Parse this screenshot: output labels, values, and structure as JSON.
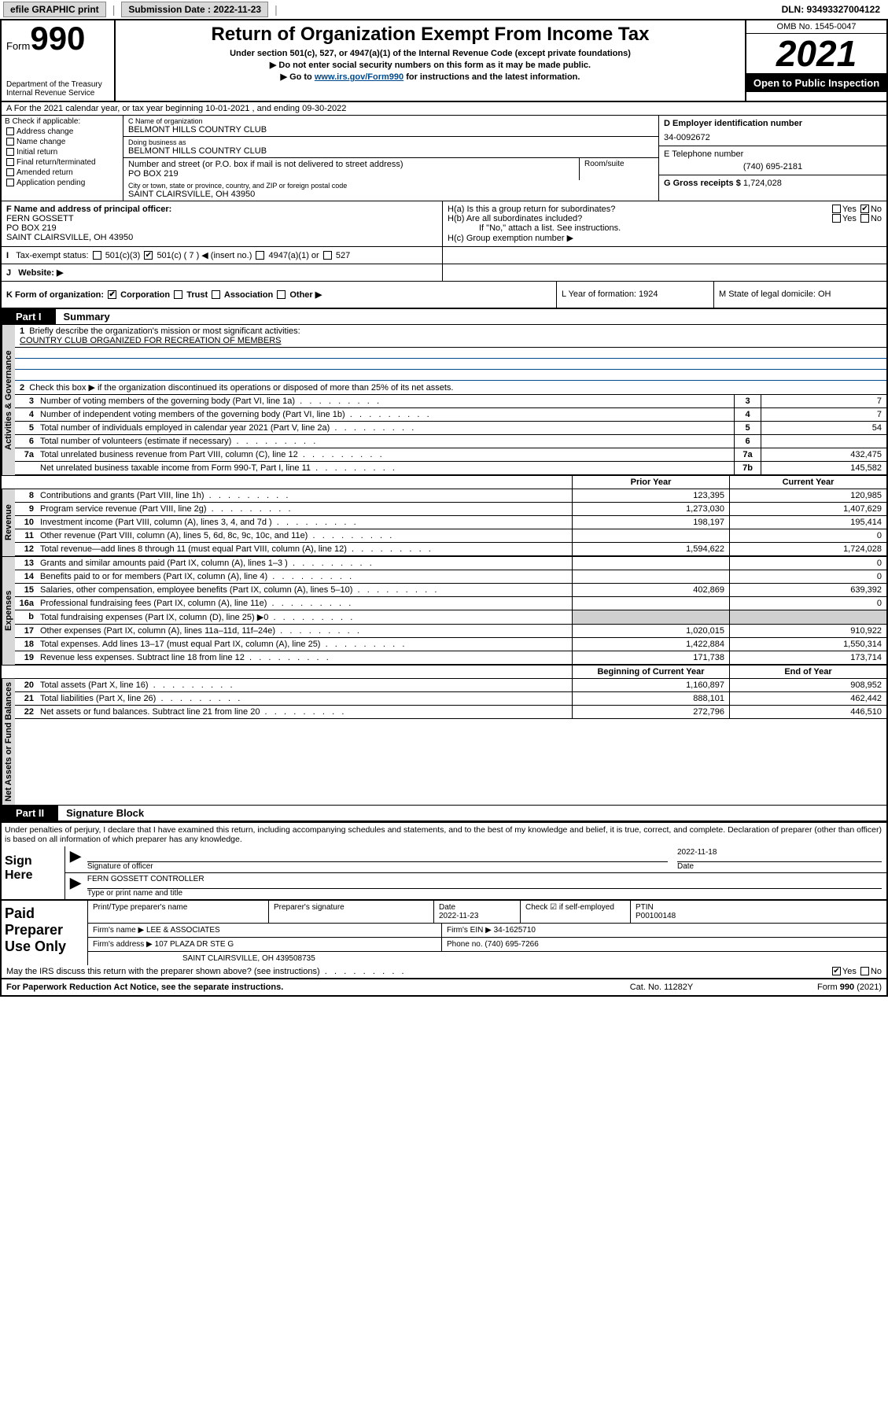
{
  "topbar": {
    "efile": "efile GRAPHIC print",
    "sub_label": "Submission Date : 2022-11-23",
    "dln": "DLN: 93493327004122"
  },
  "header": {
    "form_word": "Form",
    "form_num": "990",
    "dept": "Department of the Treasury\nInternal Revenue Service",
    "title": "Return of Organization Exempt From Income Tax",
    "sub1": "Under section 501(c), 527, or 4947(a)(1) of the Internal Revenue Code (except private foundations)",
    "sub2": "▶ Do not enter social security numbers on this form as it may be made public.",
    "sub3": "▶ Go to www.irs.gov/Form990 for instructions and the latest information.",
    "omb": "OMB No. 1545-0047",
    "year": "2021",
    "open": "Open to Public Inspection"
  },
  "rowA": "A For the 2021 calendar year, or tax year beginning 10-01-2021  , and ending 09-30-2022",
  "checkB": {
    "title": "B Check if applicable:",
    "items": [
      "Address change",
      "Name change",
      "Initial return",
      "Final return/terminated",
      "Amended return",
      "Application pending"
    ]
  },
  "orgC": {
    "lbl": "C Name of organization",
    "name": "BELMONT HILLS COUNTRY CLUB",
    "dba_lbl": "Doing business as",
    "dba": "BELMONT HILLS COUNTRY CLUB",
    "addr_lbl": "Number and street (or P.O. box if mail is not delivered to street address)",
    "addr": "PO BOX 219",
    "room_lbl": "Room/suite",
    "city_lbl": "City or town, state or province, country, and ZIP or foreign postal code",
    "city": "SAINT CLAIRSVILLE, OH  43950"
  },
  "ein": {
    "lbl": "D Employer identification number",
    "val": "34-0092672"
  },
  "tel": {
    "lbl": "E Telephone number",
    "val": "(740) 695-2181"
  },
  "gross": {
    "lbl": "G Gross receipts $",
    "val": "1,724,028"
  },
  "officerF": {
    "lbl": "F Name and address of principal officer:",
    "name": "FERN GOSSETT",
    "addr1": "PO BOX 219",
    "addr2": "SAINT CLAIRSVILLE, OH  43950"
  },
  "hBox": {
    "a": "H(a)  Is this a group return for subordinates?",
    "b": "H(b)  Are all subordinates included?",
    "note": "If \"No,\" attach a list. See instructions.",
    "c": "H(c)  Group exemption number ▶"
  },
  "rowI": "Tax-exempt status:",
  "rowI_opts": [
    "501(c)(3)",
    "501(c) ( 7 ) ◀ (insert no.)",
    "4947(a)(1) or",
    "527"
  ],
  "rowJ": "Website: ▶",
  "rowK": {
    "org": "K Form of organization:",
    "opts": [
      "Corporation",
      "Trust",
      "Association",
      "Other ▶"
    ],
    "year": "L Year of formation: 1924",
    "dom": "M State of legal domicile: OH"
  },
  "parts": {
    "p1": "Part I",
    "p1_lbl": "Summary",
    "p2": "Part II",
    "p2_lbl": "Signature Block"
  },
  "sideLabels": {
    "gov": "Activities & Governance",
    "rev": "Revenue",
    "exp": "Expenses",
    "net": "Net Assets or Fund Balances"
  },
  "summary": {
    "q1": "Briefly describe the organization's mission or most significant activities:",
    "q1v": "COUNTRY CLUB ORGANIZED FOR RECREATION OF MEMBERS",
    "q2": "Check this box ▶        if the organization discontinued its operations or disposed of more than 25% of its net assets.",
    "lines": [
      {
        "n": "3",
        "t": "Number of voting members of the governing body (Part VI, line 1a)",
        "b": "3",
        "v": "7"
      },
      {
        "n": "4",
        "t": "Number of independent voting members of the governing body (Part VI, line 1b)",
        "b": "4",
        "v": "7"
      },
      {
        "n": "5",
        "t": "Total number of individuals employed in calendar year 2021 (Part V, line 2a)",
        "b": "5",
        "v": "54"
      },
      {
        "n": "6",
        "t": "Total number of volunteers (estimate if necessary)",
        "b": "6",
        "v": ""
      },
      {
        "n": "7a",
        "t": "Total unrelated business revenue from Part VIII, column (C), line 12",
        "b": "7a",
        "v": "432,475"
      },
      {
        "n": "",
        "t": "Net unrelated business taxable income from Form 990-T, Part I, line 11",
        "b": "7b",
        "v": "145,582"
      }
    ]
  },
  "colHdr": {
    "prior": "Prior Year",
    "curr": "Current Year",
    "beg": "Beginning of Current Year",
    "end": "End of Year"
  },
  "revenue": [
    {
      "n": "8",
      "t": "Contributions and grants (Part VIII, line 1h)",
      "p": "123,395",
      "c": "120,985"
    },
    {
      "n": "9",
      "t": "Program service revenue (Part VIII, line 2g)",
      "p": "1,273,030",
      "c": "1,407,629"
    },
    {
      "n": "10",
      "t": "Investment income (Part VIII, column (A), lines 3, 4, and 7d )",
      "p": "198,197",
      "c": "195,414"
    },
    {
      "n": "11",
      "t": "Other revenue (Part VIII, column (A), lines 5, 6d, 8c, 9c, 10c, and 11e)",
      "p": "",
      "c": "0"
    },
    {
      "n": "12",
      "t": "Total revenue—add lines 8 through 11 (must equal Part VIII, column (A), line 12)",
      "p": "1,594,622",
      "c": "1,724,028"
    }
  ],
  "expenses": [
    {
      "n": "13",
      "t": "Grants and similar amounts paid (Part IX, column (A), lines 1–3 )",
      "p": "",
      "c": "0"
    },
    {
      "n": "14",
      "t": "Benefits paid to or for members (Part IX, column (A), line 4)",
      "p": "",
      "c": "0"
    },
    {
      "n": "15",
      "t": "Salaries, other compensation, employee benefits (Part IX, column (A), lines 5–10)",
      "p": "402,869",
      "c": "639,392"
    },
    {
      "n": "16a",
      "t": "Professional fundraising fees (Part IX, column (A), line 11e)",
      "p": "",
      "c": "0"
    },
    {
      "n": "b",
      "t": "Total fundraising expenses (Part IX, column (D), line 25) ▶0",
      "p": "GRAY",
      "c": "GRAY"
    },
    {
      "n": "17",
      "t": "Other expenses (Part IX, column (A), lines 11a–11d, 11f–24e)",
      "p": "1,020,015",
      "c": "910,922"
    },
    {
      "n": "18",
      "t": "Total expenses. Add lines 13–17 (must equal Part IX, column (A), line 25)",
      "p": "1,422,884",
      "c": "1,550,314"
    },
    {
      "n": "19",
      "t": "Revenue less expenses. Subtract line 18 from line 12",
      "p": "171,738",
      "c": "173,714"
    }
  ],
  "netassets": [
    {
      "n": "20",
      "t": "Total assets (Part X, line 16)",
      "p": "1,160,897",
      "c": "908,952"
    },
    {
      "n": "21",
      "t": "Total liabilities (Part X, line 26)",
      "p": "888,101",
      "c": "462,442"
    },
    {
      "n": "22",
      "t": "Net assets or fund balances. Subtract line 21 from line 20",
      "p": "272,796",
      "c": "446,510"
    }
  ],
  "sigText": "Under penalties of perjury, I declare that I have examined this return, including accompanying schedules and statements, and to the best of my knowledge and belief, it is true, correct, and complete. Declaration of preparer (other than officer) is based on all information of which preparer has any knowledge.",
  "sign": {
    "lab": "Sign Here",
    "sigof": "Signature of officer",
    "date": "2022-11-18",
    "datel": "Date",
    "name": "FERN GOSSETT CONTROLLER",
    "namel": "Type or print name and title"
  },
  "prep": {
    "lab": "Paid Preparer Use Only",
    "hdrs": [
      "Print/Type preparer's name",
      "Preparer's signature",
      "Date",
      "",
      "PTIN"
    ],
    "date": "2022-11-23",
    "chk": "Check ☑ if self-employed",
    "ptin": "P00100148",
    "firm_lbl": "Firm's name    ▶",
    "firm": "LEE & ASSOCIATES",
    "ein_lbl": "Firm's EIN ▶",
    "ein": "34-1625710",
    "addr_lbl": "Firm's address ▶",
    "addr1": "107 PLAZA DR STE G",
    "addr2": "SAINT CLAIRSVILLE, OH  439508735",
    "ph_lbl": "Phone no.",
    "ph": "(740) 695-7266"
  },
  "discuss": "May the IRS discuss this return with the preparer shown above? (see instructions)",
  "footer": {
    "l": "For Paperwork Reduction Act Notice, see the separate instructions.",
    "m": "Cat. No. 11282Y",
    "r": "Form 990 (2021)"
  }
}
